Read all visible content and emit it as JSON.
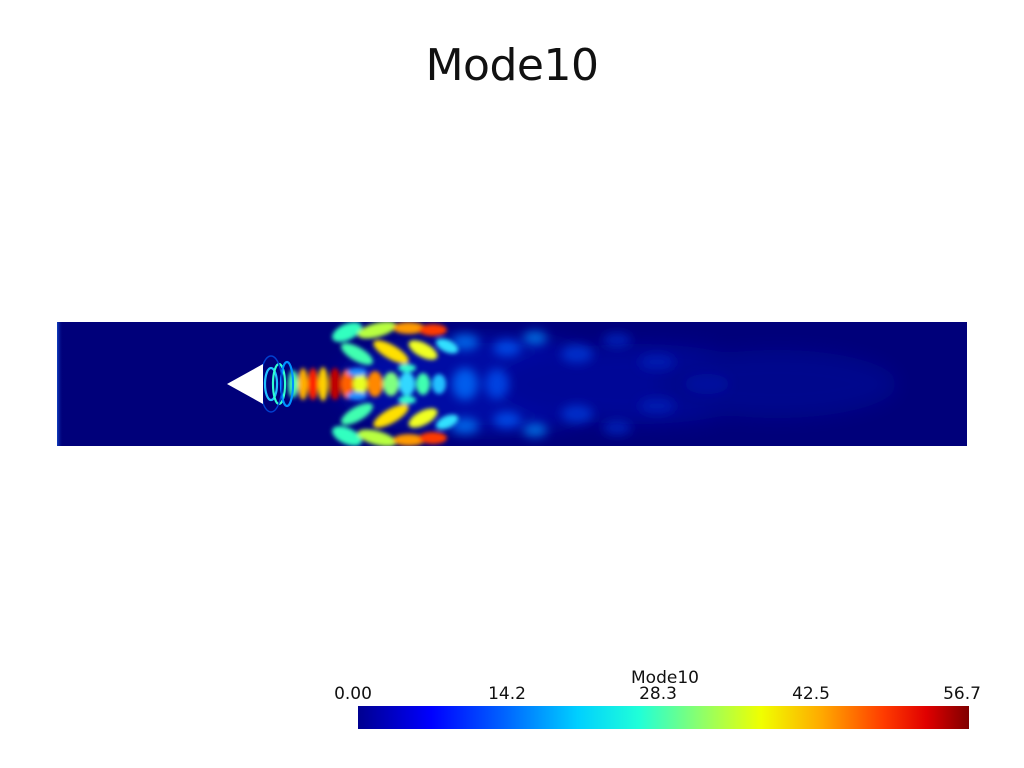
{
  "title": "Mode10",
  "colorbar": {
    "title": "Mode10",
    "ticks": [
      "0.00",
      "14.2",
      "28.3",
      "42.5",
      "56.7"
    ],
    "range": [
      0.0,
      56.7
    ],
    "colormap": "jet"
  },
  "colors": {
    "background": "#ffffff",
    "field_base": "#00007a",
    "obstacle": "#ffffff"
  }
}
